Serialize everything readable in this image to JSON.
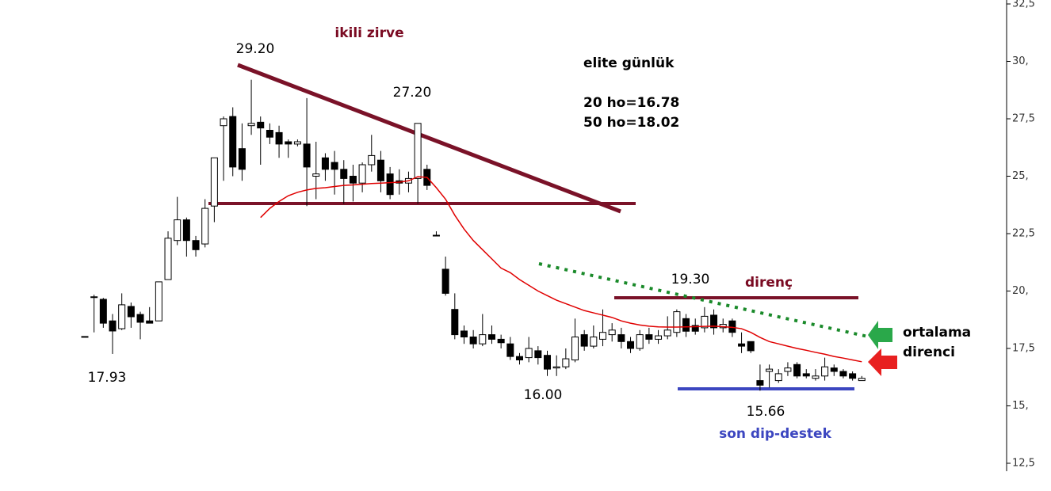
{
  "chart_data": {
    "type": "candlestick",
    "open": [
      18.02,
      19.75,
      19.64,
      18.7,
      18.36,
      19.33,
      18.98,
      18.7,
      18.7,
      20.5,
      22.2,
      23.1,
      22.2,
      22.05,
      23.7,
      27.2,
      27.6,
      26.2,
      27.2,
      27.35,
      27.0,
      26.9,
      26.5,
      26.4,
      26.4,
      25.0,
      25.8,
      25.6,
      25.3,
      25.0,
      24.7,
      25.5,
      25.7,
      25.1,
      24.8,
      24.7,
      24.9,
      25.3,
      22.43,
      20.95,
      19.2,
      18.26,
      18.0,
      17.7,
      18.1,
      17.9,
      17.7,
      17.15,
      17.1,
      17.4,
      17.2,
      16.65,
      16.7,
      17.0,
      18.1,
      17.6,
      17.9,
      18.1,
      18.1,
      17.8,
      17.5,
      18.1,
      17.9,
      18.05,
      18.2,
      18.8,
      18.5,
      18.4,
      18.95,
      18.4,
      18.7,
      17.7,
      17.8,
      16.1,
      16.5,
      16.1,
      16.5,
      16.8,
      16.4,
      16.2,
      16.3,
      16.65,
      16.5,
      16.4,
      16.1
    ],
    "high": [
      18.02,
      19.84,
      19.7,
      19.0,
      19.9,
      19.5,
      19.1,
      19.3,
      20.4,
      22.6,
      24.1,
      23.2,
      22.4,
      24.0,
      25.8,
      27.6,
      28.0,
      27.3,
      29.2,
      27.6,
      27.3,
      27.2,
      26.6,
      26.6,
      28.4,
      26.5,
      26.0,
      26.1,
      25.7,
      25.5,
      25.6,
      26.8,
      26.1,
      25.4,
      25.3,
      25.2,
      27.3,
      25.5,
      22.6,
      21.5,
      19.9,
      18.5,
      18.3,
      19.0,
      18.5,
      18.1,
      18.0,
      17.3,
      18.0,
      17.6,
      17.4,
      17.2,
      17.5,
      18.8,
      18.3,
      18.5,
      19.2,
      18.6,
      18.4,
      18.0,
      18.3,
      18.4,
      18.3,
      18.9,
      19.2,
      19.0,
      18.8,
      19.3,
      19.2,
      18.8,
      18.8,
      18.2,
      17.8,
      16.8,
      16.8,
      16.6,
      16.9,
      16.9,
      16.6,
      16.6,
      17.1,
      16.8,
      16.6,
      16.5,
      16.3
    ],
    "low": [
      18.02,
      18.2,
      18.4,
      17.26,
      18.3,
      18.4,
      17.9,
      18.6,
      18.7,
      20.5,
      22.0,
      21.5,
      21.5,
      21.9,
      23.0,
      24.8,
      25.0,
      24.8,
      26.8,
      25.5,
      26.4,
      25.8,
      25.8,
      26.3,
      23.7,
      24.0,
      24.8,
      24.2,
      23.8,
      23.9,
      24.3,
      25.2,
      24.3,
      24.0,
      24.2,
      24.3,
      23.8,
      24.4,
      22.4,
      19.8,
      17.9,
      17.7,
      17.5,
      17.6,
      17.7,
      17.5,
      17.0,
      16.8,
      16.9,
      16.8,
      16.3,
      16.3,
      16.6,
      16.9,
      17.4,
      17.5,
      17.6,
      17.8,
      17.5,
      17.3,
      17.4,
      17.7,
      17.7,
      17.9,
      18.0,
      18.0,
      18.1,
      18.2,
      18.1,
      18.2,
      18.0,
      17.3,
      17.3,
      15.66,
      15.8,
      16.0,
      16.3,
      16.2,
      16.2,
      16.1,
      16.1,
      16.3,
      16.2,
      16.1,
      16.1
    ],
    "close": [
      18.02,
      19.75,
      18.6,
      18.26,
      19.4,
      18.88,
      18.64,
      18.6,
      20.4,
      22.3,
      23.1,
      22.2,
      21.8,
      23.6,
      25.8,
      27.5,
      25.4,
      25.3,
      27.3,
      27.1,
      26.7,
      26.4,
      26.4,
      26.5,
      25.4,
      25.1,
      25.3,
      25.3,
      24.9,
      24.7,
      25.5,
      25.9,
      24.8,
      24.2,
      24.7,
      24.9,
      27.3,
      24.6,
      22.43,
      19.9,
      18.1,
      18.0,
      17.7,
      18.1,
      17.9,
      17.75,
      17.15,
      17.0,
      17.5,
      17.1,
      16.6,
      16.7,
      17.05,
      18.0,
      17.6,
      18.0,
      18.2,
      18.3,
      17.8,
      17.5,
      18.1,
      17.9,
      18.05,
      18.3,
      19.1,
      18.25,
      18.25,
      18.9,
      18.4,
      18.55,
      18.2,
      17.6,
      17.4,
      15.9,
      16.6,
      16.4,
      16.65,
      16.3,
      16.3,
      16.3,
      16.7,
      16.5,
      16.3,
      16.2,
      16.2
    ],
    "line_color": "#e00000",
    "line_values": [
      null,
      null,
      null,
      null,
      null,
      null,
      null,
      null,
      null,
      null,
      null,
      null,
      null,
      null,
      null,
      null,
      null,
      null,
      null,
      23.2,
      23.6,
      23.9,
      24.15,
      24.3,
      24.4,
      24.47,
      24.5,
      24.55,
      24.6,
      24.62,
      24.65,
      24.68,
      24.7,
      24.72,
      24.74,
      24.8,
      24.98,
      24.95,
      24.5,
      24.0,
      23.3,
      22.7,
      22.2,
      21.8,
      21.4,
      21.0,
      20.8,
      20.5,
      20.25,
      20.0,
      19.8,
      19.6,
      19.45,
      19.3,
      19.15,
      19.05,
      18.95,
      18.85,
      18.7,
      18.6,
      18.52,
      18.47,
      18.44,
      18.43,
      18.43,
      18.44,
      18.45,
      18.46,
      18.47,
      18.45,
      18.42,
      18.36,
      18.2,
      17.98,
      17.8,
      17.7,
      17.6,
      17.5,
      17.42,
      17.33,
      17.25,
      17.15,
      17.08,
      17.0,
      16.92
    ],
    "ylim": [
      12.5,
      32.5
    ],
    "yticks": [
      {
        "value": 12.5,
        "label": "12,5"
      },
      {
        "value": 15,
        "label": "15,"
      },
      {
        "value": 17.5,
        "label": "17,5"
      },
      {
        "value": 20,
        "label": "20,"
      },
      {
        "value": 22.5,
        "label": "22,5"
      },
      {
        "value": 25,
        "label": "25,"
      },
      {
        "value": 27.5,
        "label": "27,5"
      },
      {
        "value": 30,
        "label": "30,"
      },
      {
        "value": 32.5,
        "label": "32,5"
      }
    ],
    "annotations": [
      "ikili zirve",
      "29.20",
      "27.20",
      "elite günlük",
      "20 ho=16.78",
      "50 ho=18.02",
      "19.30",
      "direnç",
      "ortalama",
      "direnci",
      "17.93",
      "16.00",
      "15.66",
      "son dip-destek"
    ]
  }
}
